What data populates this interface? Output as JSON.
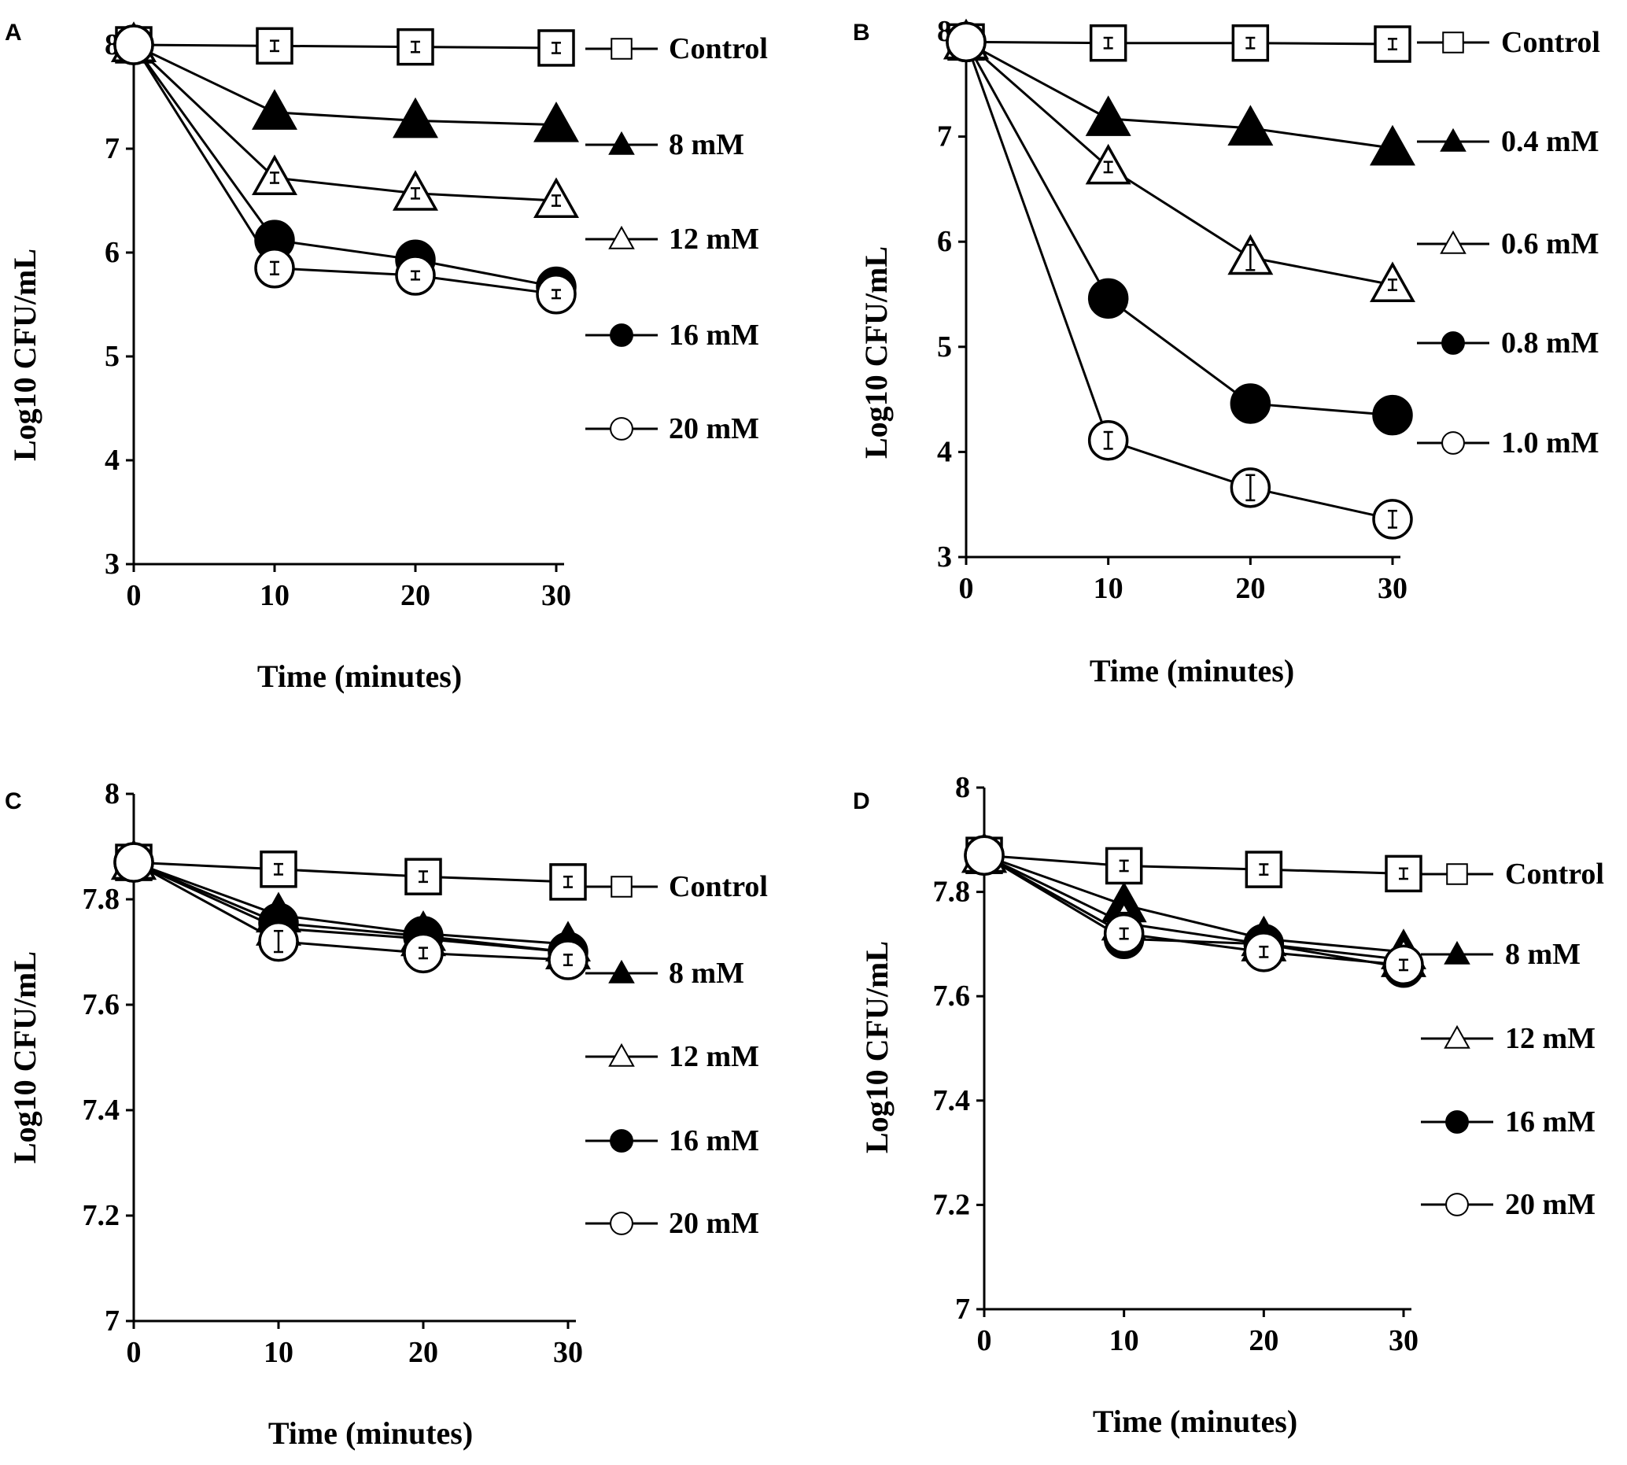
{
  "chart_data": [
    {
      "type": "line",
      "panel": "A",
      "xlabel": "Time (minutes)",
      "ylabel": "Log10 CFU/mL",
      "ylim": [
        3,
        8
      ],
      "yticks": [
        3,
        4,
        5,
        6,
        7,
        8
      ],
      "ytick_labels": [
        "3",
        "4",
        "5",
        "6",
        "7",
        "8"
      ],
      "xticks": [
        0,
        10,
        20,
        30
      ],
      "xtick_labels": [
        "0",
        "10",
        "20",
        "30"
      ],
      "x": [
        0,
        10,
        20,
        30
      ],
      "series": [
        {
          "name": "Control",
          "marker": "square-open",
          "values": [
            8.0,
            7.99,
            7.98,
            7.97
          ],
          "errors": [
            0,
            0.05,
            0.05,
            0.05
          ]
        },
        {
          "name": "8 mM",
          "marker": "triangle-filled",
          "values": [
            8.0,
            7.35,
            7.27,
            7.23
          ],
          "errors": [
            0,
            0.04,
            0.04,
            0.04
          ]
        },
        {
          "name": "12 mM",
          "marker": "triangle-open",
          "values": [
            8.0,
            6.72,
            6.57,
            6.5
          ],
          "errors": [
            0,
            0.05,
            0.05,
            0.05
          ]
        },
        {
          "name": "16 mM",
          "marker": "circle-filled",
          "values": [
            8.0,
            6.12,
            5.93,
            5.67
          ],
          "errors": [
            0,
            0.05,
            0.05,
            0.05
          ]
        },
        {
          "name": "20 mM",
          "marker": "circle-open",
          "values": [
            8.0,
            5.85,
            5.78,
            5.6
          ],
          "errors": [
            0,
            0.06,
            0.04,
            0.04
          ]
        }
      ]
    },
    {
      "type": "line",
      "panel": "B",
      "xlabel": "Time (minutes)",
      "ylabel": "Log10 CFU/mL",
      "ylim": [
        3,
        8
      ],
      "yticks": [
        3,
        4,
        5,
        6,
        7,
        8
      ],
      "ytick_labels": [
        "3",
        "4",
        "5",
        "6",
        "7",
        "8"
      ],
      "xticks": [
        0,
        10,
        20,
        30
      ],
      "xtick_labels": [
        "0",
        "10",
        "20",
        "30"
      ],
      "x": [
        0,
        10,
        20,
        30
      ],
      "series": [
        {
          "name": "Control",
          "marker": "square-open",
          "values": [
            7.9,
            7.89,
            7.89,
            7.88
          ],
          "errors": [
            0,
            0.05,
            0.05,
            0.05
          ]
        },
        {
          "name": "0.4 mM",
          "marker": "triangle-filled",
          "values": [
            7.9,
            7.17,
            7.08,
            6.89
          ],
          "errors": [
            0,
            0.04,
            0.04,
            0.04
          ]
        },
        {
          "name": "0.6 mM",
          "marker": "triangle-open",
          "values": [
            7.9,
            6.71,
            5.85,
            5.59
          ],
          "errors": [
            0,
            0.05,
            0.12,
            0.05
          ]
        },
        {
          "name": "0.8 mM",
          "marker": "circle-filled",
          "values": [
            7.9,
            5.46,
            4.46,
            4.35
          ],
          "errors": [
            0,
            0.05,
            0.05,
            0.05
          ]
        },
        {
          "name": "1.0 mM",
          "marker": "circle-open",
          "values": [
            7.9,
            4.11,
            3.66,
            3.36
          ],
          "errors": [
            0,
            0.08,
            0.12,
            0.08
          ]
        }
      ]
    },
    {
      "type": "line",
      "panel": "C",
      "xlabel": "Time (minutes)",
      "ylabel": "Log10 CFU/mL",
      "ylim": [
        7,
        8
      ],
      "yticks": [
        7,
        7.2,
        7.4,
        7.6,
        7.8,
        8
      ],
      "ytick_labels": [
        "7",
        "7.2",
        "7.4",
        "7.6",
        "7.8",
        "8"
      ],
      "xticks": [
        0,
        10,
        20,
        30
      ],
      "xtick_labels": [
        "0",
        "10",
        "20",
        "30"
      ],
      "x": [
        0,
        10,
        20,
        30
      ],
      "series": [
        {
          "name": "Control",
          "marker": "square-open",
          "values": [
            7.87,
            7.857,
            7.843,
            7.833
          ],
          "errors": [
            0,
            0.01,
            0.01,
            0.01
          ]
        },
        {
          "name": "8 mM",
          "marker": "triangle-filled",
          "values": [
            7.87,
            7.77,
            7.735,
            7.715
          ],
          "errors": [
            0,
            0.02,
            0.01,
            0.02
          ]
        },
        {
          "name": "12 mM",
          "marker": "triangle-open",
          "values": [
            7.87,
            7.745,
            7.725,
            7.7
          ],
          "errors": [
            0,
            0.02,
            0.01,
            0.02
          ]
        },
        {
          "name": "16 mM",
          "marker": "circle-filled",
          "values": [
            7.87,
            7.755,
            7.73,
            7.7
          ],
          "errors": [
            0,
            0.02,
            0.01,
            0.02
          ]
        },
        {
          "name": "20 mM",
          "marker": "circle-open",
          "values": [
            7.87,
            7.72,
            7.698,
            7.685
          ],
          "errors": [
            0,
            0.02,
            0.01,
            0.01
          ]
        }
      ]
    },
    {
      "type": "line",
      "panel": "D",
      "xlabel": "Time (minutes)",
      "ylabel": "Log10 CFU/mL",
      "ylim": [
        7,
        8
      ],
      "yticks": [
        7,
        7.2,
        7.4,
        7.6,
        7.8,
        8
      ],
      "ytick_labels": [
        "7",
        "7.2",
        "7.4",
        "7.6",
        "7.8",
        "8"
      ],
      "xticks": [
        0,
        10,
        20,
        30
      ],
      "xtick_labels": [
        "0",
        "10",
        "20",
        "30"
      ],
      "x": [
        0,
        10,
        20,
        30
      ],
      "series": [
        {
          "name": "Control",
          "marker": "square-open",
          "values": [
            7.87,
            7.85,
            7.843,
            7.835
          ],
          "errors": [
            0,
            0.01,
            0.01,
            0.01
          ]
        },
        {
          "name": "8 mM",
          "marker": "triangle-filled",
          "values": [
            7.87,
            7.775,
            7.71,
            7.685
          ],
          "errors": [
            0,
            0.02,
            0.01,
            0.02
          ]
        },
        {
          "name": "12 mM",
          "marker": "triangle-open",
          "values": [
            7.87,
            7.74,
            7.7,
            7.67
          ],
          "errors": [
            0,
            0.02,
            0.01,
            0.01
          ]
        },
        {
          "name": "16 mM",
          "marker": "circle-filled",
          "values": [
            7.87,
            7.71,
            7.7,
            7.655
          ],
          "errors": [
            0,
            0.01,
            0.01,
            0.01
          ]
        },
        {
          "name": "20 mM",
          "marker": "circle-open",
          "values": [
            7.87,
            7.72,
            7.685,
            7.66
          ],
          "errors": [
            0,
            0.01,
            0.01,
            0.01
          ]
        }
      ]
    }
  ]
}
